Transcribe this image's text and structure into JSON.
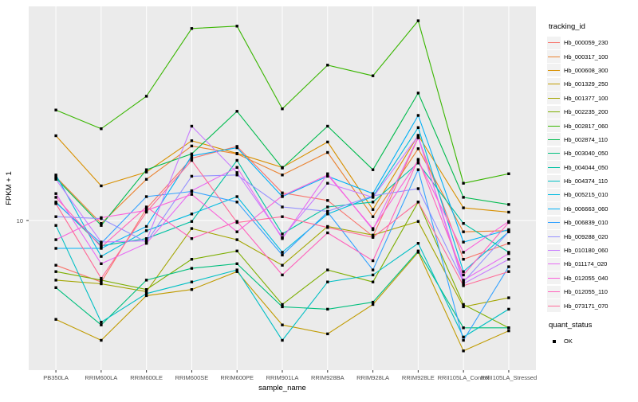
{
  "figure": {
    "y_axis_title": "FPKM + 1",
    "x_axis_title": "sample_name",
    "y_tick_label": "10"
  },
  "panel": {
    "bg": "#ebebeb",
    "grid": "#ffffff",
    "marker_color": "#000000"
  },
  "legend": {
    "tracking_title": "tracking_id",
    "quant_title": "quant_status",
    "quant_items": [
      "OK"
    ]
  },
  "chart_data": {
    "type": "line",
    "title": "",
    "xlabel": "sample_name",
    "ylabel": "FPKM + 1",
    "y_scale": "log10",
    "y_ticks": [
      10
    ],
    "ylim": [
      1.8,
      110
    ],
    "grid": "on",
    "legend_position": "right",
    "legend_title": "tracking_id",
    "marker": "filled-square",
    "quant_status": "OK",
    "categories": [
      "PB350LA",
      "RRIM600LA",
      "RRIM600LE",
      "RRIM600SE",
      "RRIM600PE",
      "RRIM901LA",
      "RRIM928BA",
      "RRIM928LA",
      "RRIM928LE",
      "RRII105LA_Control",
      "RRII105LA_Stressed"
    ],
    "series": [
      {
        "name": "Hb_000059_230",
        "color": "#F8766D",
        "values": [
          6.3,
          5.3,
          11.3,
          19.0,
          21.5,
          13.3,
          12.3,
          8.5,
          23.5,
          6.7,
          7.9
        ]
      },
      {
        "name": "Hb_000317_100",
        "color": "#EA8331",
        "values": [
          15.7,
          9.7,
          15.3,
          21.6,
          19.9,
          16.0,
          20.2,
          10.4,
          21.0,
          8.9,
          9.0
        ]
      },
      {
        "name": "Hb_000608_300",
        "color": "#D89000",
        "values": [
          24.0,
          14.3,
          16.5,
          22.8,
          20.0,
          17.3,
          22.5,
          11.2,
          24.1,
          11.4,
          10.9
        ]
      },
      {
        "name": "Hb_001329_250",
        "color": "#C09B00",
        "values": [
          3.6,
          2.9,
          4.6,
          4.9,
          5.9,
          3.4,
          3.1,
          4.2,
          7.2,
          2.6,
          3.2
        ]
      },
      {
        "name": "Hb_001377_100",
        "color": "#A3A500",
        "values": [
          5.4,
          5.2,
          4.8,
          9.2,
          8.2,
          6.3,
          9.4,
          8.6,
          9.9,
          4.1,
          4.5
        ]
      },
      {
        "name": "Hb_002235_200",
        "color": "#7CAE00",
        "values": [
          5.9,
          5.4,
          4.9,
          6.7,
          7.3,
          4.2,
          6.0,
          5.3,
          12.1,
          4.2,
          3.3
        ]
      },
      {
        "name": "Hb_002817_060",
        "color": "#39B600",
        "values": [
          31.3,
          25.8,
          36.1,
          72.7,
          74.5,
          31.7,
          49.8,
          44.6,
          78.7,
          14.7,
          16.2
        ]
      },
      {
        "name": "Hb_002874_110",
        "color": "#00BB4E",
        "values": [
          15.5,
          9.5,
          16.9,
          19.9,
          30.9,
          17.2,
          26.5,
          16.9,
          37.3,
          12.7,
          11.8
        ]
      },
      {
        "name": "Hb_003040_050",
        "color": "#00BF7D",
        "values": [
          5.0,
          3.4,
          5.4,
          6.1,
          6.4,
          4.1,
          4.0,
          4.3,
          7.3,
          3.3,
          3.3
        ]
      },
      {
        "name": "Hb_004044_050",
        "color": "#00C1A3",
        "values": [
          12.1,
          7.7,
          8.3,
          9.9,
          18.6,
          8.7,
          11.5,
          12.1,
          18.1,
          9.7,
          7.2
        ]
      },
      {
        "name": "Hb_004374_110",
        "color": "#00BFC4",
        "values": [
          9.5,
          3.5,
          4.7,
          5.3,
          6.0,
          2.9,
          5.3,
          5.7,
          7.9,
          3.0,
          4.0
        ]
      },
      {
        "name": "Hb_005215_010",
        "color": "#00BAE0",
        "values": [
          16.0,
          6.9,
          9.0,
          10.7,
          12.8,
          7.2,
          10.7,
          12.8,
          26.1,
          5.9,
          8.9
        ]
      },
      {
        "name": "Hb_006663_060",
        "color": "#00B0F6",
        "values": [
          7.5,
          7.5,
          9.4,
          19.5,
          21.2,
          12.8,
          15.8,
          13.2,
          29.6,
          8.0,
          9.1
        ]
      },
      {
        "name": "Hb_006839_010",
        "color": "#35A2FF",
        "values": [
          12.0,
          7.9,
          12.8,
          13.5,
          12.1,
          7.0,
          10.9,
          6.0,
          16.9,
          2.9,
          6.2
        ]
      },
      {
        "name": "Hb_009288_020",
        "color": "#9590FF",
        "values": [
          10.4,
          10.2,
          8.0,
          15.8,
          16.0,
          11.5,
          11.0,
          12.9,
          13.9,
          5.3,
          8.9
        ]
      },
      {
        "name": "Hb_010180_060",
        "color": "#C77CFF",
        "values": [
          15.3,
          8.0,
          8.1,
          26.5,
          16.4,
          8.4,
          14.7,
          12.7,
          24.0,
          5.2,
          6.7
        ]
      },
      {
        "name": "Hb_011174_020",
        "color": "#E76BF3",
        "values": [
          13.2,
          6.4,
          7.9,
          13.6,
          17.3,
          8.3,
          16.2,
          9.1,
          23.6,
          5.4,
          7.1
        ]
      },
      {
        "name": "Hb_012055_040",
        "color": "#FA62DB",
        "values": [
          8.2,
          10.3,
          11.1,
          13.1,
          8.9,
          12.9,
          16.0,
          9.2,
          18.6,
          7.2,
          9.9
        ]
      },
      {
        "name": "Hb_012055_110",
        "color": "#FF62BC",
        "values": [
          12.7,
          7.6,
          11.5,
          8.3,
          9.9,
          5.7,
          8.8,
          6.6,
          18.8,
          5.7,
          9.8
        ]
      },
      {
        "name": "Hb_073171_070",
        "color": "#FF6A98",
        "values": [
          11.9,
          5.5,
          10.9,
          18.6,
          9.8,
          10.4,
          9.3,
          8.4,
          12.1,
          5.1,
          5.9
        ]
      }
    ]
  }
}
